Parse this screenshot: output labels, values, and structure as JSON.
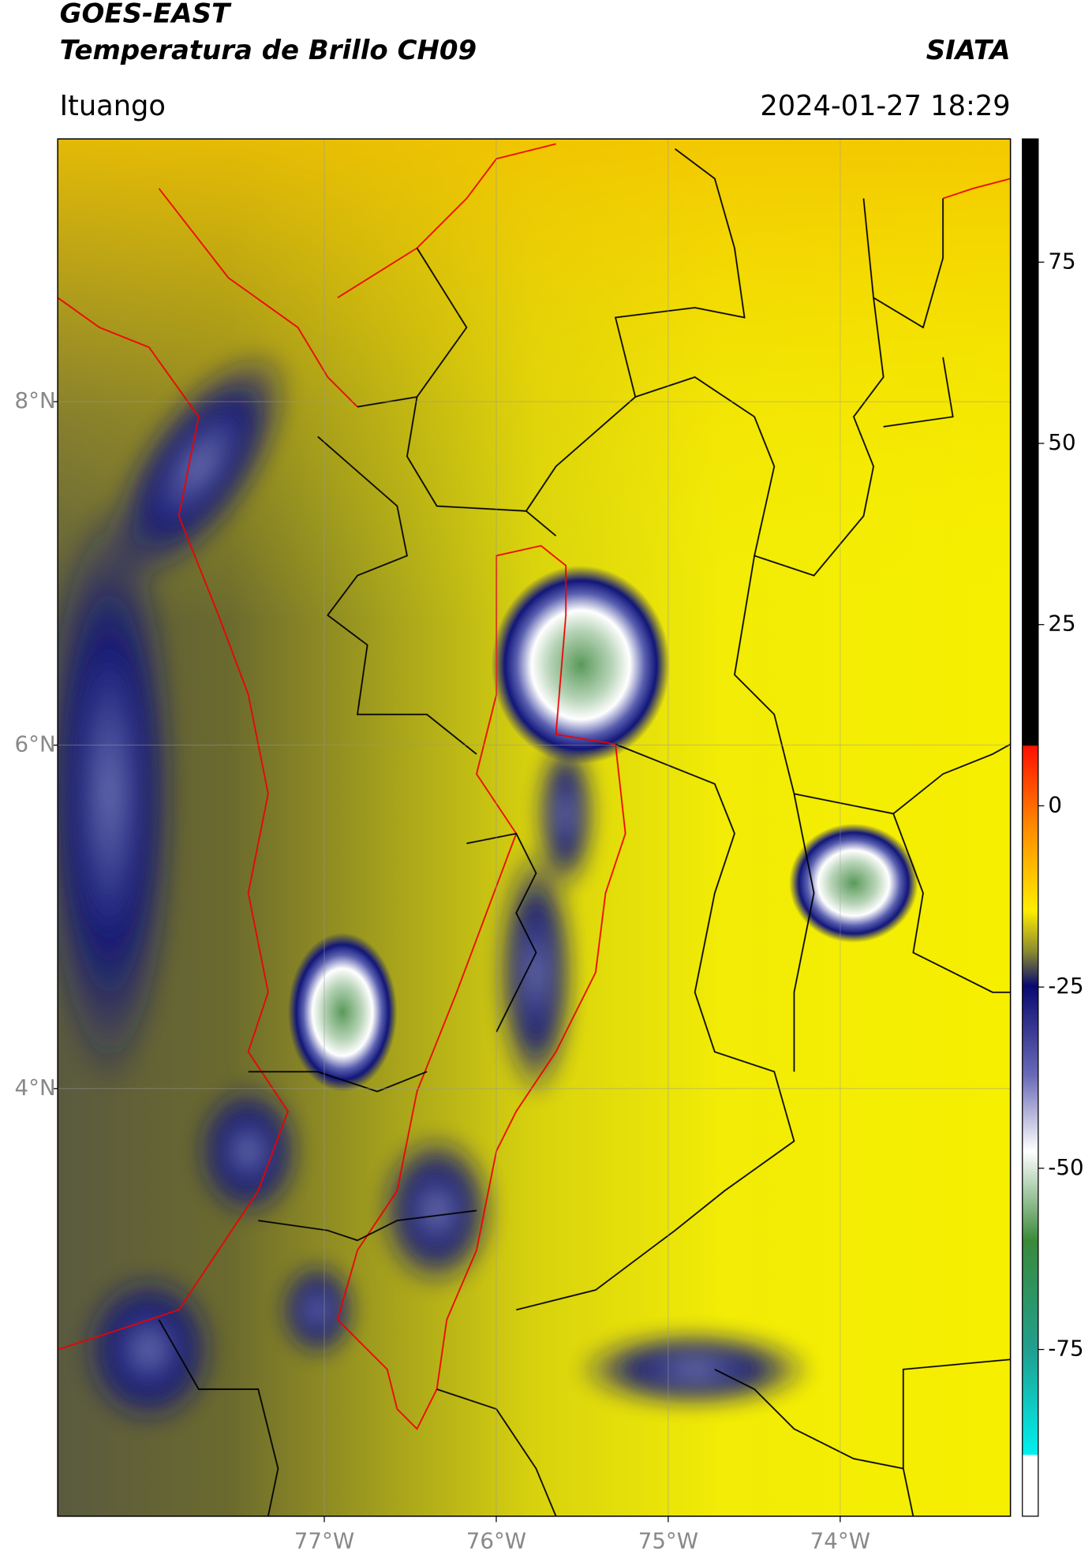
{
  "header": {
    "title_line1": "GOES-EAST",
    "title_line2": "Temperatura de Brillo CH09",
    "source": "SIATA",
    "location": "Ituango",
    "datetime": "2024-01-27 18:29"
  },
  "map": {
    "xlim": [
      -78.55,
      -73.01
    ],
    "ylim": [
      1.51,
      9.53
    ],
    "xticks": [
      {
        "value": -77,
        "label": "77°W"
      },
      {
        "value": -76,
        "label": "76°W"
      },
      {
        "value": -75,
        "label": "75°W"
      },
      {
        "value": -74,
        "label": "74°W"
      }
    ],
    "yticks": [
      {
        "value": 8,
        "label": "8°N"
      },
      {
        "value": 6,
        "label": "6°N"
      },
      {
        "value": 4,
        "label": "4°N"
      }
    ],
    "grid": true
  },
  "colorbar": {
    "lim": [
      -98,
      92
    ],
    "ticks": [
      75,
      50,
      25,
      0,
      -25,
      -50,
      -75
    ]
  }
}
